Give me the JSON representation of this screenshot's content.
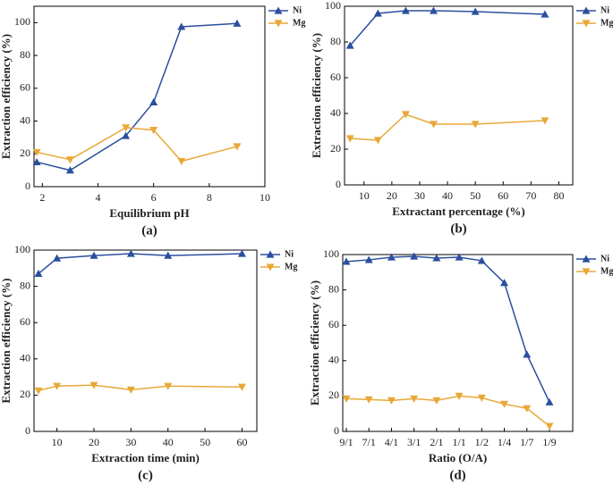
{
  "chart_data": [
    {
      "type": "line",
      "caption": "(a)",
      "xlabel": "Equilibrium pH",
      "ylabel": "Extraction efficiency (%)",
      "x": [
        1.8,
        3,
        5,
        6,
        7,
        9
      ],
      "series": [
        {
          "name": "Ni",
          "color": "#2b4f9e",
          "marker": "triangle-up",
          "values": [
            15,
            10,
            31,
            51.5,
            97.5,
            99.5
          ]
        },
        {
          "name": "Mg",
          "color": "#e8a838",
          "marker": "triangle-down",
          "values": [
            21,
            16.5,
            36,
            34.5,
            15.5,
            24.5
          ]
        }
      ],
      "xlim": [
        1.7,
        10
      ],
      "xticks": [
        2,
        4,
        6,
        8,
        10
      ],
      "ylim": [
        0,
        110
      ],
      "yticks": [
        0,
        20,
        40,
        60,
        80,
        100
      ],
      "legend": "right"
    },
    {
      "type": "line",
      "caption": "(b)",
      "xlabel": "Extractant percentage (%)",
      "ylabel": "Extraction efficiency (%)",
      "x": [
        5,
        15,
        25,
        35,
        50,
        75
      ],
      "series": [
        {
          "name": "Ni",
          "color": "#2b4f9e",
          "marker": "triangle-up",
          "values": [
            78,
            96,
            97.5,
            97.5,
            97,
            95.5
          ]
        },
        {
          "name": "Mg",
          "color": "#e8a838",
          "marker": "triangle-down",
          "values": [
            26,
            25,
            39.5,
            34,
            34,
            36
          ]
        }
      ],
      "xlim": [
        3,
        85
      ],
      "xticks": [
        10,
        20,
        30,
        40,
        50,
        60,
        70,
        80
      ],
      "ylim": [
        0,
        100
      ],
      "yticks": [
        0,
        20,
        40,
        60,
        80,
        100
      ],
      "legend": "right"
    },
    {
      "type": "line",
      "caption": "(c)",
      "xlabel": "Extraction time (min)",
      "ylabel": "Extraction efficiency (%)",
      "x": [
        5,
        10,
        20,
        30,
        40,
        60
      ],
      "series": [
        {
          "name": "Ni",
          "color": "#2b4f9e",
          "marker": "triangle-up",
          "values": [
            87,
            95.5,
            97,
            98,
            97,
            98
          ]
        },
        {
          "name": "Mg",
          "color": "#e8a838",
          "marker": "triangle-down",
          "values": [
            22.5,
            25,
            25.5,
            23,
            25,
            24.5
          ]
        }
      ],
      "xlim": [
        3.8,
        64
      ],
      "xticks": [
        10,
        20,
        30,
        40,
        50,
        60
      ],
      "ylim": [
        0,
        100
      ],
      "yticks": [
        0,
        20,
        40,
        60,
        80,
        100
      ],
      "legend": "right"
    },
    {
      "type": "line",
      "caption": "(d)",
      "xlabel": "Ratio (O/A)",
      "ylabel": "Extraction efficiency (%)",
      "categories": [
        "9/1",
        "7/1",
        "4/1",
        "3/1",
        "2/1",
        "1/1",
        "1/2",
        "1/4",
        "1/7",
        "1/9"
      ],
      "series": [
        {
          "name": "Ni",
          "color": "#2b4f9e",
          "marker": "triangle-up",
          "values": [
            96,
            97,
            98.5,
            99,
            98,
            98.5,
            96.5,
            84,
            43.5,
            16.5
          ]
        },
        {
          "name": "Mg",
          "color": "#e8a838",
          "marker": "triangle-down",
          "values": [
            18.5,
            18,
            17.5,
            18.5,
            17.5,
            20,
            19,
            15.5,
            13,
            3
          ]
        }
      ],
      "ylim": [
        0,
        100
      ],
      "yticks": [
        0,
        20,
        40,
        60,
        80,
        100
      ],
      "legend": "right"
    }
  ]
}
